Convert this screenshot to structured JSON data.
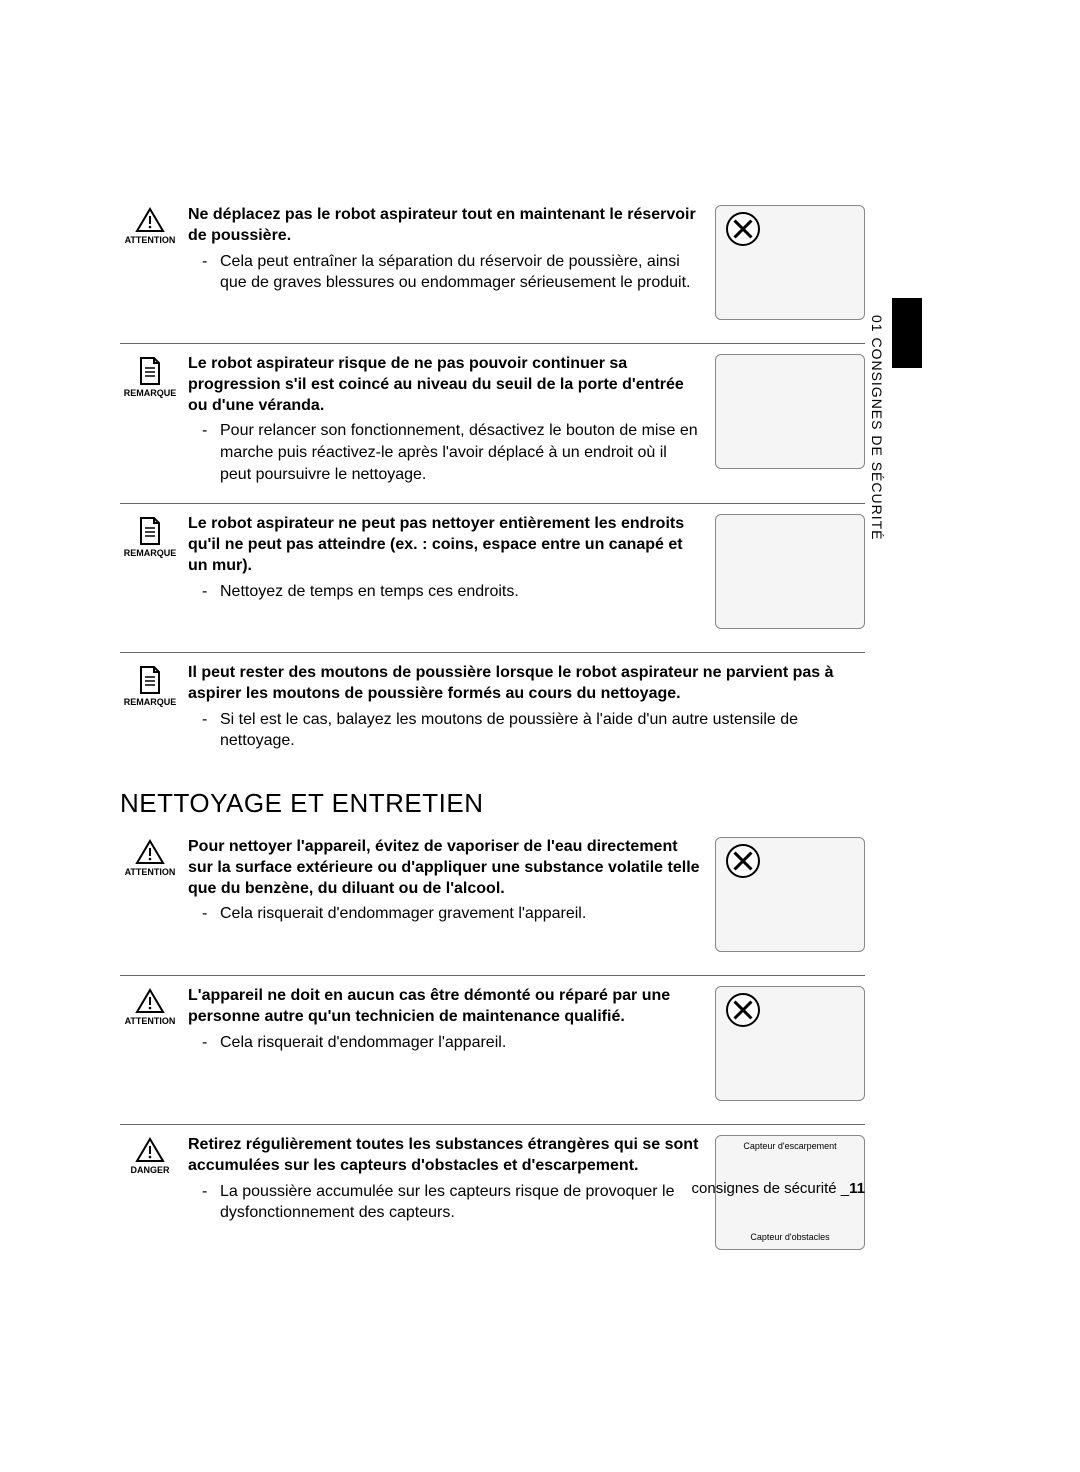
{
  "sideTab": "01 CONSIGNES DE SÉCURITÉ",
  "iconLabels": {
    "attention": "ATTENTION",
    "remarque": "REMARQUE",
    "danger": "DANGER"
  },
  "items": [
    {
      "icon": "attention",
      "title": "Ne déplacez pas le robot aspirateur tout en maintenant le réservoir de poussière.",
      "bullets": [
        "Cela peut entraîner la séparation du réservoir de poussière, ainsi que de graves blessures ou endommager sérieusement le produit."
      ],
      "illust": "robot-top-view-x",
      "xmark": true,
      "bordered": true
    },
    {
      "icon": "remarque",
      "title": "Le robot aspirateur risque de ne pas pouvoir continuer sa progression s'il est coincé au niveau du seuil de la porte d'entrée ou d'une véranda.",
      "bullets": [
        "Pour relancer son fonctionnement, désactivez le bouton de mise en marche puis réactivez-le après l'avoir déplacé à un endroit où il peut poursuivre le nettoyage."
      ],
      "illust": "robot-stuck-threshold",
      "xmark": false,
      "bordered": true
    },
    {
      "icon": "remarque",
      "title": "Le robot aspirateur ne peut pas nettoyer entièrement les endroits qu'il ne peut pas atteindre (ex. : coins, espace entre un canapé et un mur).",
      "bullets": [
        "Nettoyez de temps en temps ces endroits."
      ],
      "illust": "person-vacuum-sofa",
      "xmark": false,
      "bordered": true
    },
    {
      "icon": "remarque",
      "title": "Il peut rester des moutons de poussière lorsque le robot aspirateur ne parvient pas à aspirer les moutons de poussière formés au cours du nettoyage.",
      "bullets": [
        "Si tel est le cas, balayez les moutons de poussière à l'aide d'un autre ustensile de nettoyage."
      ],
      "illust": null,
      "xmark": false,
      "bordered": false,
      "wide": true
    }
  ],
  "heading": "NETTOYAGE ET ENTRETIEN",
  "items2": [
    {
      "icon": "attention",
      "title": "Pour nettoyer l'appareil, évitez de vaporiser de l'eau directement sur la surface extérieure ou d'appliquer une substance volatile telle que du benzène, du diluant ou de l'alcool.",
      "bullets": [
        "Cela risquerait d'endommager gravement l'appareil."
      ],
      "illust": "spray-on-robot-x",
      "xmark": true,
      "bordered": true
    },
    {
      "icon": "attention",
      "title": "L'appareil ne doit en aucun cas être démonté ou réparé par une personne autre qu'un technicien de maintenance qualifié.",
      "bullets": [
        "Cela risquerait d'endommager l'appareil."
      ],
      "illust": "disassemble-robot-x",
      "xmark": true,
      "bordered": true
    },
    {
      "icon": "danger",
      "title": "Retirez régulièrement toutes les substances étrangères qui se sont accumulées sur les capteurs d'obstacles et d'escarpement.",
      "bullets": [
        "La poussière accumulée sur les capteurs risque de provoquer le dysfonctionnement des capteurs."
      ],
      "illust": "robot-sensors-diagram",
      "xmark": false,
      "bordered": false,
      "sensorLabels": {
        "top": "Capteur d'escarpement",
        "bottom": "Capteur d'obstacles"
      }
    }
  ],
  "footer": {
    "text": "consignes de sécurité _",
    "page": "11"
  }
}
